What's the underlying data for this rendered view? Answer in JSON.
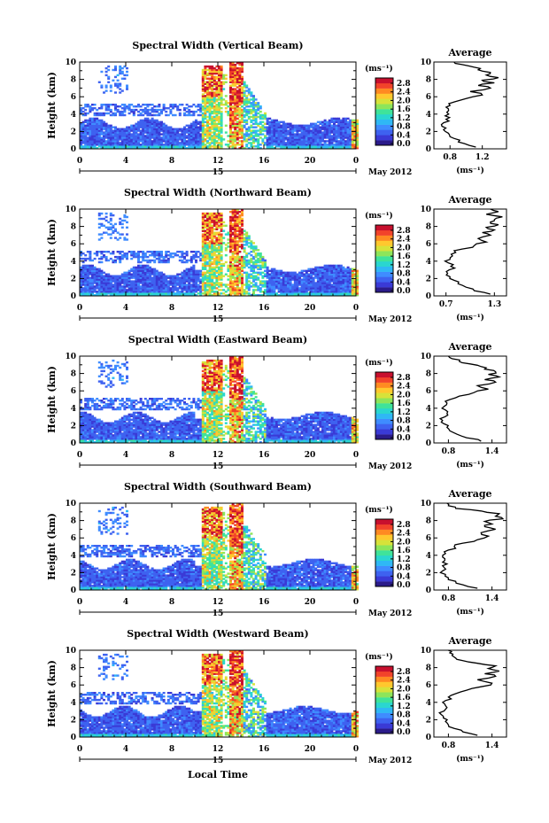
{
  "colors": {
    "colormap": [
      "#2b1b8a",
      "#3a3ad6",
      "#3e62f0",
      "#3f8cff",
      "#2fb8f5",
      "#2ad6d0",
      "#3fe39a",
      "#8de55a",
      "#d7e23a",
      "#ffc82e",
      "#ff8a22",
      "#f2432a",
      "#c8102e"
    ],
    "axis": "#000000",
    "profile": "#000000"
  },
  "common": {
    "ylabel": "Height (km)",
    "colorbar_unit": "(ms⁻¹)",
    "colorbar_ticks": [
      "2.8",
      "2.4",
      "2.0",
      "1.6",
      "1.2",
      "0.8",
      "0.4",
      "0.0"
    ],
    "x_ticks": [
      "0",
      "4",
      "8",
      "12",
      "16",
      "20",
      "0"
    ],
    "y_ticks": [
      "10",
      "8",
      "6",
      "4",
      "2",
      "0"
    ],
    "day_label": "15",
    "month_label": "May 2012",
    "profile_title": "Average",
    "profile_unit": "(ms⁻¹)",
    "xlabel": "Local Time"
  },
  "chart_data": [
    {
      "type": "heatmap",
      "title": "Spectral Width (Vertical Beam)",
      "xlim": [
        0,
        24
      ],
      "ylim": [
        0,
        10
      ],
      "clim": [
        0.0,
        3.0
      ],
      "profile": {
        "type": "line",
        "title": "Average",
        "xticks": [
          "0.8",
          "1.2"
        ],
        "xlim": [
          0.6,
          1.5
        ],
        "x": [
          1.12,
          0.98,
          0.92,
          0.8,
          0.78,
          0.72,
          0.7,
          0.72,
          0.75,
          0.74,
          0.76,
          0.78,
          0.8,
          0.85,
          1.0,
          1.2,
          1.05,
          1.3,
          1.15,
          1.35,
          1.2,
          1.4,
          1.25,
          1.3,
          1.15,
          1.1,
          0.95,
          0.85
        ],
        "y": [
          0.2,
          0.6,
          1.0,
          1.4,
          1.8,
          2.2,
          2.6,
          3.0,
          3.4,
          3.8,
          4.2,
          4.6,
          5.0,
          5.4,
          5.8,
          6.2,
          6.6,
          7.0,
          7.3,
          7.6,
          7.9,
          8.2,
          8.5,
          8.8,
          9.1,
          9.4,
          9.7,
          10.0
        ]
      }
    },
    {
      "type": "heatmap",
      "title": "Spectral Width (Northward Beam)",
      "xlim": [
        0,
        24
      ],
      "ylim": [
        0,
        10
      ],
      "clim": [
        0.0,
        3.0
      ],
      "profile": {
        "type": "line",
        "title": "Average",
        "xticks": [
          "0.7",
          "1.3"
        ],
        "xlim": [
          0.55,
          1.45
        ],
        "x": [
          1.25,
          1.05,
          0.95,
          0.85,
          0.8,
          0.75,
          0.72,
          0.74,
          0.76,
          0.73,
          0.75,
          0.78,
          0.82,
          0.9,
          1.05,
          1.2,
          1.1,
          1.25,
          1.15,
          1.3,
          1.2,
          1.35,
          1.25,
          1.3,
          1.4,
          1.2,
          1.35,
          1.25
        ],
        "y": [
          0.2,
          0.6,
          1.0,
          1.4,
          1.8,
          2.2,
          2.6,
          3.0,
          3.4,
          3.8,
          4.2,
          4.6,
          5.0,
          5.4,
          5.8,
          6.2,
          6.6,
          7.0,
          7.3,
          7.6,
          7.9,
          8.2,
          8.5,
          8.8,
          9.1,
          9.4,
          9.7,
          10.0
        ]
      }
    },
    {
      "type": "heatmap",
      "title": "Spectral Width (Eastward Beam)",
      "xlim": [
        0,
        24
      ],
      "ylim": [
        0,
        10
      ],
      "clim": [
        0.0,
        3.0
      ],
      "profile": {
        "type": "line",
        "title": "Average",
        "xticks": [
          "0.8",
          "1.4"
        ],
        "xlim": [
          0.6,
          1.6
        ],
        "x": [
          1.25,
          1.05,
          0.92,
          0.82,
          0.78,
          0.74,
          0.72,
          0.75,
          0.78,
          0.76,
          0.74,
          0.78,
          0.82,
          0.95,
          1.15,
          1.35,
          1.2,
          1.45,
          1.3,
          1.5,
          1.35,
          1.45,
          1.3,
          1.25,
          1.1,
          0.95,
          0.85,
          0.8
        ],
        "y": [
          0.2,
          0.6,
          1.0,
          1.4,
          1.8,
          2.2,
          2.6,
          3.0,
          3.4,
          3.8,
          4.2,
          4.6,
          5.0,
          5.4,
          5.8,
          6.2,
          6.6,
          7.0,
          7.3,
          7.6,
          7.9,
          8.2,
          8.5,
          8.8,
          9.1,
          9.4,
          9.7,
          10.0
        ]
      }
    },
    {
      "type": "heatmap",
      "title": "Spectral Width (Southward Beam)",
      "xlim": [
        0,
        24
      ],
      "ylim": [
        0,
        10
      ],
      "clim": [
        0.0,
        3.0
      ],
      "profile": {
        "type": "line",
        "title": "Average",
        "xticks": [
          "0.8",
          "1.4"
        ],
        "xlim": [
          0.6,
          1.6
        ],
        "x": [
          1.2,
          1.0,
          0.9,
          0.8,
          0.76,
          0.72,
          0.74,
          0.78,
          0.75,
          0.72,
          0.76,
          0.8,
          0.88,
          1.0,
          1.2,
          1.35,
          1.25,
          1.45,
          1.3,
          1.4,
          1.3,
          1.55,
          1.45,
          1.5,
          1.25,
          0.9,
          0.8,
          0.78
        ],
        "y": [
          0.2,
          0.6,
          1.0,
          1.4,
          1.8,
          2.2,
          2.6,
          3.0,
          3.4,
          3.8,
          4.2,
          4.6,
          5.0,
          5.4,
          5.8,
          6.2,
          6.6,
          7.0,
          7.3,
          7.6,
          7.9,
          8.2,
          8.5,
          8.8,
          9.1,
          9.4,
          9.7,
          10.0
        ]
      }
    },
    {
      "type": "heatmap",
      "title": "Spectral Width (Westward Beam)",
      "xlim": [
        0,
        24
      ],
      "ylim": [
        0,
        10
      ],
      "clim": [
        0.0,
        3.0
      ],
      "profile": {
        "type": "line",
        "title": "Average",
        "xticks": [
          "0.8",
          "1.4"
        ],
        "xlim": [
          0.6,
          1.6
        ],
        "x": [
          1.2,
          1.0,
          0.88,
          0.8,
          0.76,
          0.73,
          0.7,
          0.74,
          0.78,
          0.75,
          0.76,
          0.8,
          0.9,
          1.05,
          1.25,
          1.4,
          1.2,
          1.45,
          1.3,
          1.5,
          1.35,
          1.45,
          1.2,
          1.0,
          0.9,
          0.85,
          0.82,
          0.8
        ],
        "y": [
          0.2,
          0.6,
          1.0,
          1.4,
          1.8,
          2.2,
          2.6,
          3.0,
          3.4,
          3.8,
          4.2,
          4.6,
          5.0,
          5.4,
          5.8,
          6.2,
          6.6,
          7.0,
          7.3,
          7.6,
          7.9,
          8.2,
          8.5,
          8.8,
          9.1,
          9.4,
          9.7,
          10.0
        ]
      }
    }
  ]
}
